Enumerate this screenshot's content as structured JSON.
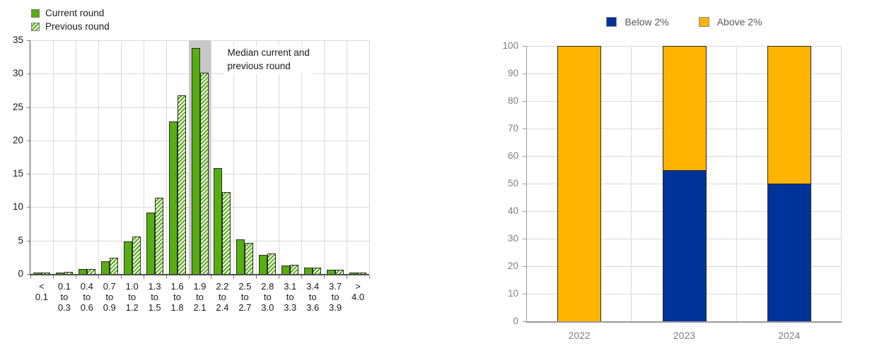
{
  "chart_data": [
    {
      "id": "inflation-expectations-histogram",
      "type": "bar",
      "legend": [
        {
          "label": "Current round",
          "swatch": "solid-green"
        },
        {
          "label": "Previous round",
          "swatch": "hatched-green"
        }
      ],
      "annotation": {
        "line1": "Median current and",
        "line2": "previous round"
      },
      "categories": [
        [
          "<",
          "0.1"
        ],
        [
          "0.1",
          "to",
          "0.3"
        ],
        [
          "0.4",
          "to",
          "0.6"
        ],
        [
          "0.7",
          "to",
          "0.9"
        ],
        [
          "1.0",
          "to",
          "1.2"
        ],
        [
          "1.3",
          "to",
          "1.5"
        ],
        [
          "1.6",
          "to",
          "1.8"
        ],
        [
          "1.9",
          "to",
          "2.1"
        ],
        [
          "2.2",
          "to",
          "2.4"
        ],
        [
          "2.5",
          "to",
          "2.7"
        ],
        [
          "2.8",
          "to",
          "3.0"
        ],
        [
          "3.1",
          "to",
          "3.3"
        ],
        [
          "3.4",
          "to",
          "3.6"
        ],
        [
          "3.7",
          "to",
          "3.9"
        ],
        [
          ">",
          "4.0"
        ]
      ],
      "series": [
        {
          "name": "Current round",
          "values": [
            0.1,
            0.2,
            0.7,
            1.9,
            4.9,
            9.2,
            22.8,
            33.8,
            15.9,
            5.2,
            2.9,
            1.3,
            0.9,
            0.6,
            0.1
          ]
        },
        {
          "name": "Previous round",
          "values": [
            0.1,
            0.3,
            0.7,
            2.4,
            5.6,
            11.4,
            26.7,
            30.1,
            12.3,
            4.7,
            3.1,
            1.4,
            1.0,
            0.6,
            0.1
          ]
        }
      ],
      "ylim": [
        0,
        35
      ],
      "ytick_step": 5,
      "yticks": [
        "0",
        "5",
        "10",
        "15",
        "20",
        "25",
        "30",
        "35"
      ],
      "median_band_bin_index": 7,
      "grid": true,
      "legend_position": "top-left",
      "colors": {
        "green": "#56AE10",
        "bar_border": "#2b2b2b",
        "median_band": "#c8c8c8",
        "grid": "#d9d9d9",
        "axis": "#4d4d4d",
        "tick": "#808080",
        "tick_text": "#1a1a1a"
      }
    },
    {
      "id": "below-above-2pct-stacked",
      "type": "bar",
      "subtype": "stacked",
      "legend": [
        {
          "label": "Below 2%",
          "swatch": "blue"
        },
        {
          "label": "Above 2%",
          "swatch": "orange"
        }
      ],
      "categories": [
        "2022",
        "2023",
        "2024"
      ],
      "series": [
        {
          "name": "Below 2%",
          "values": [
            0,
            55,
            50
          ],
          "color": "#003399"
        },
        {
          "name": "Above 2%",
          "values": [
            100,
            45,
            50
          ],
          "color": "#FFB400"
        }
      ],
      "ylim": [
        0,
        100
      ],
      "ytick_step": 10,
      "yticks": [
        "0",
        "10",
        "20",
        "30",
        "40",
        "50",
        "60",
        "70",
        "80",
        "90",
        "100"
      ],
      "grid": true,
      "legend_position": "top-center",
      "colors": {
        "blue": "#003399",
        "orange": "#FFB400",
        "bar_border": "#1f1f1f",
        "grid": "#d9d9d9",
        "axis": "#9a9a9a",
        "tick_text": "#808080"
      }
    }
  ]
}
